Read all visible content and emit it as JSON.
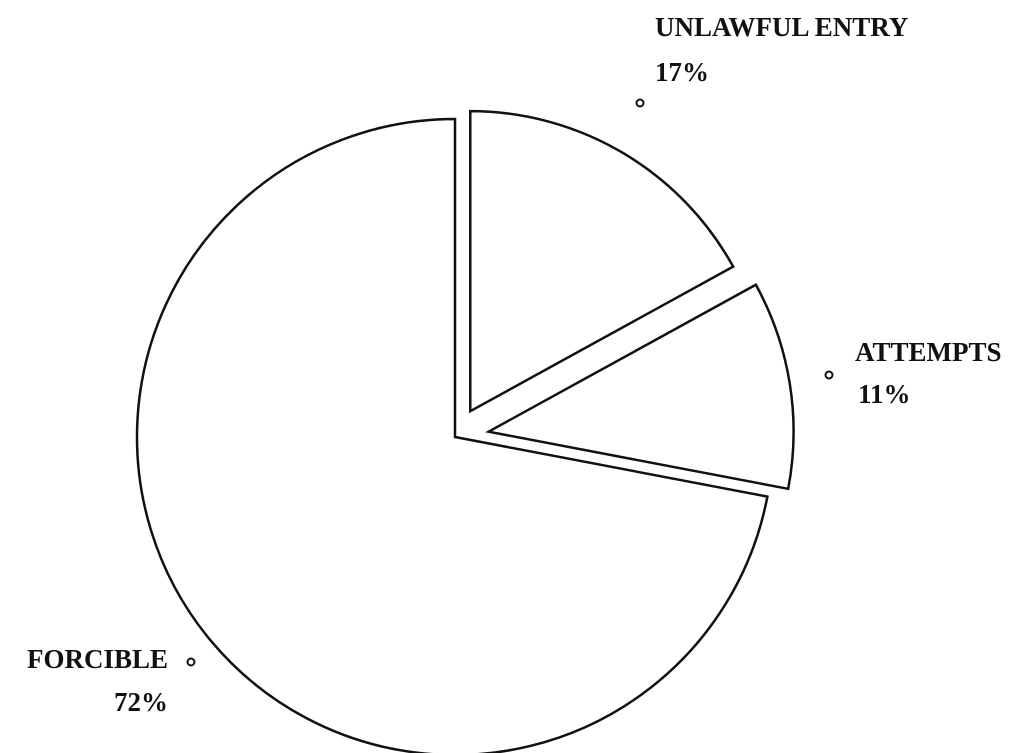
{
  "chart_data": {
    "type": "pie",
    "categories": [
      "UNLAWFUL ENTRY",
      "ATTEMPTS",
      "FORCIBLE"
    ],
    "values": [
      17,
      11,
      72
    ],
    "value_labels": [
      "17%",
      "11%",
      "72%"
    ],
    "color": "#ffffff"
  }
}
